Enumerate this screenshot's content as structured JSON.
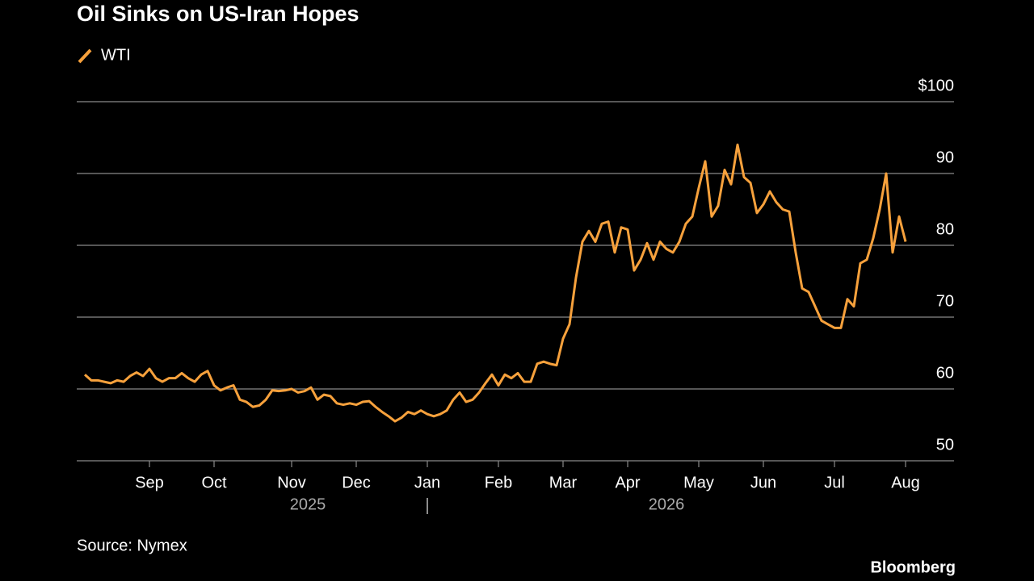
{
  "chart_data": {
    "type": "line",
    "title": "Oil Sinks on US-Iran Hopes",
    "source": "Source: Nymex",
    "brand": "Bloomberg",
    "year_labels": [
      "2025",
      "2026"
    ],
    "categories": [
      null,
      null,
      null,
      null,
      null,
      null,
      null,
      null,
      null,
      null,
      "Sep",
      null,
      null,
      null,
      null,
      null,
      null,
      null,
      null,
      null,
      "Oct",
      null,
      null,
      null,
      null,
      null,
      null,
      null,
      null,
      null,
      null,
      null,
      "Nov",
      null,
      null,
      null,
      null,
      null,
      null,
      null,
      null,
      null,
      "Dec",
      null,
      null,
      null,
      null,
      null,
      null,
      null,
      null,
      null,
      null,
      "Jan",
      null,
      null,
      null,
      null,
      null,
      null,
      null,
      null,
      null,
      null,
      "Feb",
      null,
      null,
      null,
      null,
      null,
      null,
      null,
      null,
      null,
      "Mar",
      null,
      null,
      null,
      null,
      null,
      null,
      null,
      null,
      null,
      "Apr",
      null,
      null,
      null,
      null,
      null,
      null,
      null,
      null,
      null,
      null,
      "May",
      null,
      null,
      null,
      null,
      null,
      null,
      null,
      null,
      null,
      "Jun",
      null,
      null,
      null,
      null,
      null,
      null,
      null,
      null,
      null,
      null,
      "Jul",
      null,
      null,
      null,
      null,
      null,
      null,
      null,
      null,
      null,
      null,
      "Aug"
    ],
    "series": [
      {
        "name": "WTI",
        "color": "#f7a13c",
        "values": [
          62,
          61.2,
          61.2,
          61,
          60.8,
          61.2,
          61,
          61.8,
          62.3,
          61.8,
          62.8,
          61.5,
          61,
          61.5,
          61.5,
          62.2,
          61.5,
          61,
          62,
          62.5,
          60.5,
          59.8,
          60.2,
          60.5,
          58.5,
          58.2,
          57.5,
          57.7,
          58.5,
          59.8,
          59.7,
          59.8,
          60,
          59.5,
          59.7,
          60.2,
          58.5,
          59.2,
          59,
          58,
          57.8,
          58,
          57.8,
          58.2,
          58.3,
          57.5,
          56.8,
          56.2,
          55.5,
          56,
          56.8,
          56.5,
          57,
          56.5,
          56.2,
          56.5,
          57,
          58.5,
          59.5,
          58.2,
          58.5,
          59.5,
          60.8,
          62,
          60.5,
          62,
          61.5,
          62.2,
          61,
          61,
          63.5,
          63.8,
          63.5,
          63.3,
          67,
          69,
          75.5,
          80.5,
          82,
          80.5,
          83,
          83.3,
          79,
          82.5,
          82.2,
          76.5,
          78,
          80.3,
          78,
          80.5,
          79.5,
          79,
          80.5,
          83,
          84,
          88,
          91.7,
          84,
          85.5,
          90.5,
          88.5,
          94,
          89.5,
          88.7,
          84.5,
          85.7,
          87.5,
          86,
          85,
          84.7,
          79,
          74,
          73.5,
          71.5,
          69.5,
          69,
          68.5,
          68.5,
          72.5,
          71.5,
          77.5,
          78,
          81,
          85,
          90,
          79,
          84,
          80.5
        ]
      }
    ],
    "ylim": [
      50,
      100
    ],
    "yticks": [
      {
        "value": 100,
        "label": "$100"
      },
      90,
      80,
      70,
      60,
      50
    ],
    "grid": true,
    "legend": "top-left"
  }
}
